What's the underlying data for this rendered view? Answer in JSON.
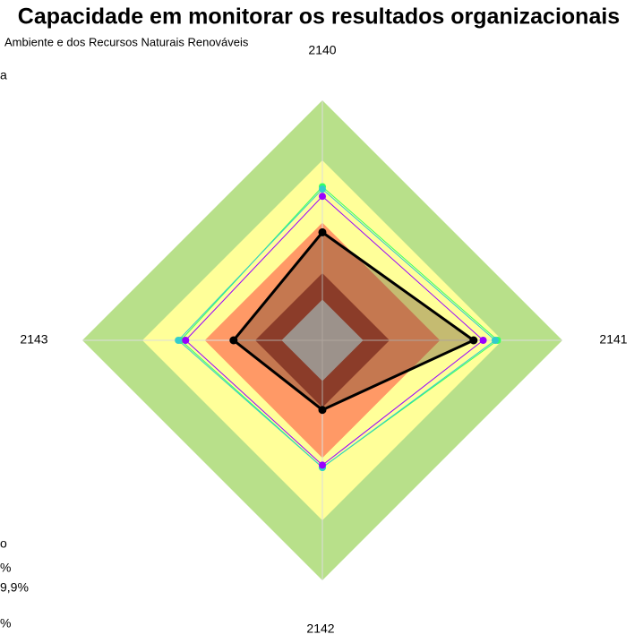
{
  "chart_data": {
    "type": "radar",
    "title": "Capacidade em monitorar os resultados organizacionais",
    "fragments": [
      "Ambiente e dos Recursos Naturais Renováveis",
      "a",
      "o",
      "%",
      "9,9%",
      "%"
    ],
    "categories": [
      "2140",
      "2141",
      "2142",
      "2143"
    ],
    "rlim": [
      0,
      100
    ],
    "bands": [
      {
        "value": 100,
        "color": "#b8e08a"
      },
      {
        "value": 75,
        "color": "#ffff99"
      },
      {
        "value": 49,
        "color": "#ff9966"
      },
      {
        "value": 28,
        "color": "#a63d2a"
      },
      {
        "value": 17,
        "color": "#c0c0c0"
      }
    ],
    "series": [
      {
        "color": "#33ff66",
        "values": [
          64,
          73,
          53,
          59
        ]
      },
      {
        "color": "#33cccc",
        "values": [
          63,
          72,
          53,
          60
        ]
      },
      {
        "color": "#9900ff",
        "values": [
          60,
          67,
          52,
          57
        ]
      },
      {
        "color": "#000000",
        "values": [
          45,
          63,
          29,
          37
        ]
      }
    ]
  }
}
